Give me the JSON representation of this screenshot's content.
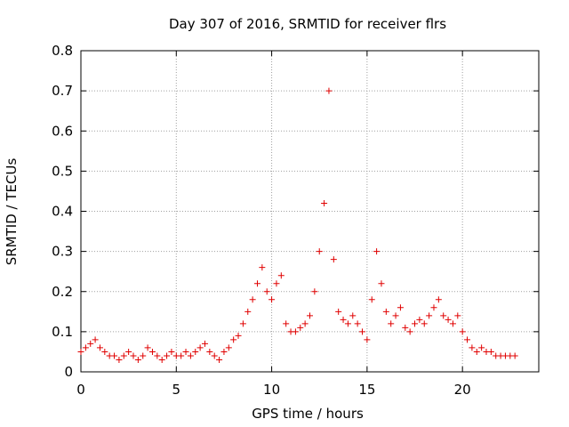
{
  "chart_data": {
    "type": "scatter",
    "title": "Day 307 of 2016, SRMTID for receiver flrs",
    "xlabel": "GPS time / hours",
    "ylabel": "SRMTID / TECUs",
    "xlim": [
      0,
      24
    ],
    "ylim": [
      0,
      0.8
    ],
    "xticks": [
      0,
      5,
      10,
      15,
      20
    ],
    "xtick_labels": [
      "0",
      "5",
      "10",
      "15",
      "20"
    ],
    "yticks": [
      0,
      0.1,
      0.2,
      0.3,
      0.4,
      0.5,
      0.6,
      0.7,
      0.8
    ],
    "ytick_labels": [
      "0",
      "0.1",
      "0.2",
      "0.3",
      "0.4",
      "0.5",
      "0.6",
      "0.7",
      "0.8"
    ],
    "grid": true,
    "marker": "plus",
    "color": "#e00000",
    "series": [
      {
        "name": "SRMTID",
        "x": [
          0.0,
          0.25,
          0.5,
          0.75,
          1.0,
          1.25,
          1.5,
          1.75,
          2.0,
          2.25,
          2.5,
          2.75,
          3.0,
          3.25,
          3.5,
          3.75,
          4.0,
          4.25,
          4.5,
          4.75,
          5.0,
          5.25,
          5.5,
          5.75,
          6.0,
          6.25,
          6.5,
          6.75,
          7.0,
          7.25,
          7.5,
          7.75,
          8.0,
          8.25,
          8.5,
          8.75,
          9.0,
          9.25,
          9.5,
          9.75,
          10.0,
          10.25,
          10.5,
          10.75,
          11.0,
          11.25,
          11.5,
          11.75,
          12.0,
          12.25,
          12.5,
          12.75,
          13.0,
          13.25,
          13.5,
          13.75,
          14.0,
          14.25,
          14.5,
          14.75,
          15.0,
          15.25,
          15.5,
          15.75,
          16.0,
          16.25,
          16.5,
          16.75,
          17.0,
          17.25,
          17.5,
          17.75,
          18.0,
          18.25,
          18.5,
          18.75,
          19.0,
          19.25,
          19.5,
          19.75,
          20.0,
          20.25,
          20.5,
          20.75,
          21.0,
          21.25,
          21.5,
          21.75,
          22.0,
          22.25,
          22.5,
          22.75
        ],
        "y": [
          0.05,
          0.06,
          0.07,
          0.08,
          0.06,
          0.05,
          0.04,
          0.04,
          0.03,
          0.04,
          0.05,
          0.04,
          0.03,
          0.04,
          0.06,
          0.05,
          0.04,
          0.03,
          0.04,
          0.05,
          0.04,
          0.04,
          0.05,
          0.04,
          0.05,
          0.06,
          0.07,
          0.05,
          0.04,
          0.03,
          0.05,
          0.06,
          0.08,
          0.09,
          0.12,
          0.15,
          0.18,
          0.22,
          0.26,
          0.2,
          0.18,
          0.22,
          0.24,
          0.12,
          0.1,
          0.1,
          0.11,
          0.12,
          0.14,
          0.2,
          0.3,
          0.42,
          0.7,
          0.28,
          0.15,
          0.13,
          0.12,
          0.14,
          0.12,
          0.1,
          0.08,
          0.18,
          0.3,
          0.22,
          0.15,
          0.12,
          0.14,
          0.16,
          0.11,
          0.1,
          0.12,
          0.13,
          0.12,
          0.14,
          0.16,
          0.18,
          0.14,
          0.13,
          0.12,
          0.14,
          0.1,
          0.08,
          0.06,
          0.05,
          0.06,
          0.05,
          0.05,
          0.04,
          0.04,
          0.04,
          0.04,
          0.04
        ]
      }
    ]
  }
}
